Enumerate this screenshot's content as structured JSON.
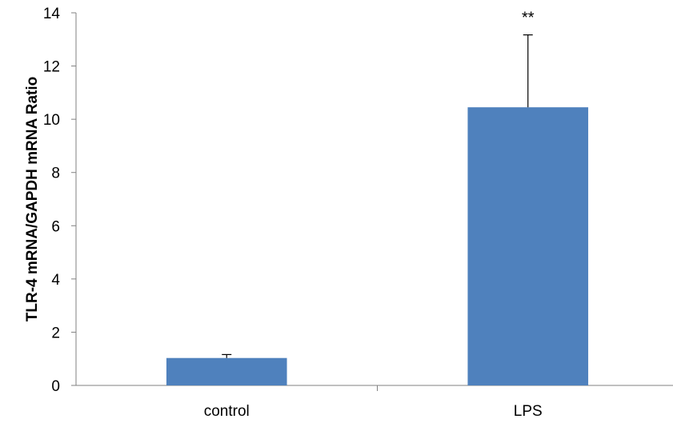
{
  "chart_data": {
    "type": "bar",
    "title": "",
    "xlabel": "",
    "ylabel": "TLR-4 mRNA/GAPDH mRNA Ratio",
    "categories": [
      "control",
      "LPS"
    ],
    "values": [
      1.03,
      10.45
    ],
    "errors": [
      0.13,
      2.72
    ],
    "annotations": [
      "",
      "**"
    ],
    "ylim": [
      0,
      14
    ],
    "yticks": [
      "0",
      "2",
      "4",
      "6",
      "8",
      "10",
      "12",
      "14"
    ],
    "grid": false,
    "legend": "none",
    "colors": {
      "bar": "#4f81bd",
      "axis": "#808080",
      "error_bar": "#000000"
    }
  }
}
